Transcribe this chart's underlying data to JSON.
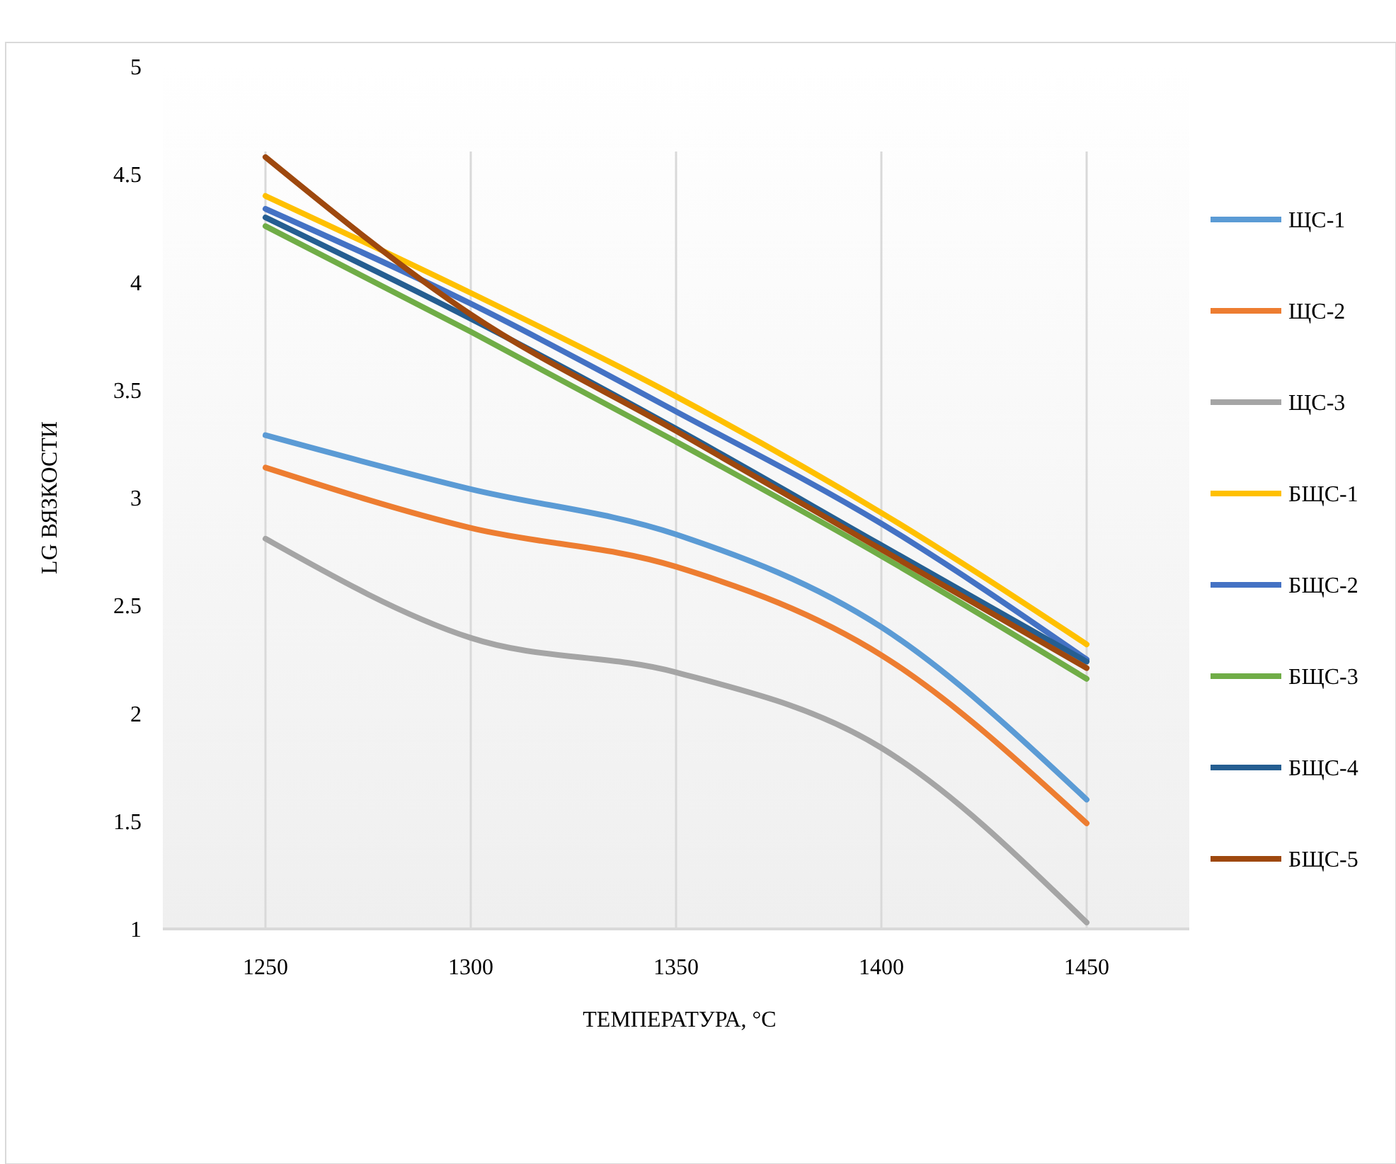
{
  "chart_data": {
    "type": "line",
    "xlabel": "ТЕМПЕРАТУРА, °C",
    "ylabel": "LG ВЯЗКОСТИ",
    "x": [
      1250,
      1300,
      1350,
      1400,
      1450
    ],
    "xlim": [
      1225,
      1475
    ],
    "xticks": [
      1250,
      1300,
      1350,
      1400,
      1450
    ],
    "ylim": [
      1,
      5
    ],
    "yticks": [
      1,
      1.5,
      2,
      2.5,
      3,
      3.5,
      4,
      4.5,
      5
    ],
    "grid": "x",
    "legend": "right",
    "marker": "none",
    "line_style": "solid",
    "series": [
      {
        "name": "ЩС-1",
        "color": "#5b9bd5",
        "values": [
          3.29,
          3.04,
          2.83,
          2.4,
          1.6
        ]
      },
      {
        "name": "ЩС-2",
        "color": "#ed7d31",
        "values": [
          3.14,
          2.86,
          2.68,
          2.27,
          1.49
        ]
      },
      {
        "name": "ЩС-3",
        "color": "#a5a5a5",
        "values": [
          2.81,
          2.35,
          2.19,
          1.84,
          1.03
        ]
      },
      {
        "name": "БЩС-1",
        "color": "#ffc000",
        "values": [
          4.4,
          3.95,
          3.47,
          2.93,
          2.32
        ]
      },
      {
        "name": "БЩС-2",
        "color": "#4472c4",
        "values": [
          4.34,
          3.9,
          3.4,
          2.88,
          2.25
        ]
      },
      {
        "name": "БЩС-3",
        "color": "#70ad47",
        "values": [
          4.26,
          3.77,
          3.26,
          2.73,
          2.16
        ]
      },
      {
        "name": "БЩС-4",
        "color": "#255e91",
        "values": [
          4.3,
          3.83,
          3.32,
          2.78,
          2.24
        ]
      },
      {
        "name": "БЩС-5",
        "color": "#9e480e",
        "values": [
          4.58,
          3.85,
          3.31,
          2.76,
          2.21
        ]
      }
    ]
  }
}
